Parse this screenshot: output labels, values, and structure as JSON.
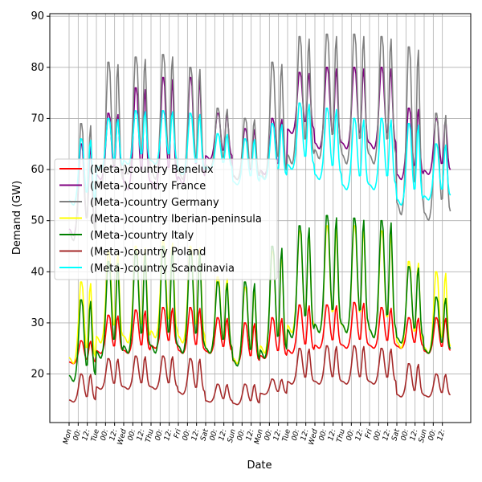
{
  "chart_data": {
    "type": "line",
    "title": "",
    "xlabel": "Date",
    "ylabel": "Demand (GW)",
    "ylim": [
      10.5,
      90.5
    ],
    "yticks": [
      20,
      30,
      40,
      50,
      60,
      70,
      80,
      90
    ],
    "grid": true,
    "legend_position": "center-left",
    "x_tick_labels": [
      "Mon",
      "00:",
      "12:",
      "Tue",
      "00:",
      "12:",
      "Wed",
      "00:",
      "12:",
      "Thu",
      "00:",
      "12:",
      "Fri",
      "00:",
      "12:",
      "Sat",
      "00:",
      "12:",
      "Sun",
      "00:",
      "12:",
      "Mon",
      "00:",
      "12:",
      "Tue",
      "00:",
      "12:",
      "Wed",
      "00:",
      "12:",
      "Thu",
      "00:",
      "12:",
      "Fri",
      "00:",
      "12:",
      "Sat",
      "00:",
      "12:",
      "Sun",
      "00:",
      "12:"
    ],
    "x_tick_groups_comment": "",
    "days": [
      "Mon",
      "Tue",
      "Wed",
      "Thu",
      "Fri",
      "Sat",
      "Sun",
      "Mon",
      "Tue",
      "Wed",
      "Thu",
      "Fri",
      "Sat",
      "Sun"
    ],
    "series": [
      {
        "name": "(Meta-)country Benelux",
        "color": "#ff0000",
        "daily_min": [
          22,
          24,
          24,
          25,
          24,
          24,
          22,
          23,
          24,
          25,
          25,
          25,
          25,
          24
        ],
        "daily_max": [
          26.5,
          31.5,
          32.5,
          33,
          33,
          31,
          30,
          31,
          33.5,
          33.5,
          34,
          33,
          31,
          31
        ]
      },
      {
        "name": "(Meta-)country France",
        "color": "#800080",
        "daily_min": [
          47,
          58,
          56,
          56,
          57,
          62,
          58,
          59,
          67,
          64,
          64,
          64,
          58,
          59
        ],
        "daily_max": [
          65,
          71,
          76,
          78,
          78,
          71,
          68,
          70,
          79,
          80,
          80,
          80,
          72,
          70
        ]
      },
      {
        "name": "(Meta-)country Germany",
        "color": "#808080",
        "daily_min": [
          46,
          56,
          59,
          58,
          58,
          60,
          58,
          58,
          61,
          62,
          61,
          61,
          51,
          50
        ],
        "daily_max": [
          69,
          81,
          82,
          82.5,
          80,
          72,
          70,
          81,
          86,
          86.5,
          86.5,
          86,
          84,
          71
        ]
      },
      {
        "name": "(Meta-)country Iberian-peninsula",
        "color": "#ffff00",
        "daily_min": [
          22,
          26,
          26,
          27,
          26,
          24,
          22,
          24,
          28,
          28,
          28,
          27,
          25,
          24
        ],
        "daily_max": [
          38,
          44,
          45,
          46,
          45,
          39,
          37,
          44,
          48,
          49,
          49,
          48,
          42,
          40
        ]
      },
      {
        "name": "(Meta-)country Italy",
        "color": "#008000",
        "daily_min": [
          18.5,
          23,
          24,
          24,
          24,
          24,
          21.5,
          23,
          27,
          28,
          28,
          27,
          26,
          24
        ],
        "daily_max": [
          34.5,
          42,
          44,
          45,
          44,
          38,
          38,
          45,
          49,
          51,
          50.5,
          50,
          41,
          35
        ]
      },
      {
        "name": "(Meta-)country Poland",
        "color": "#a52a2a",
        "daily_min": [
          14.5,
          17,
          17,
          17,
          16,
          14.5,
          14,
          16,
          18,
          18,
          18,
          18,
          15.5,
          15.5
        ],
        "daily_max": [
          20,
          23,
          23.5,
          23.5,
          23,
          18,
          18,
          19,
          25,
          25.5,
          25.5,
          25,
          22,
          20
        ]
      },
      {
        "name": "(Meta-)country Scandinavia",
        "color": "#00ffff",
        "daily_min": [
          53,
          60,
          61,
          61,
          59,
          60,
          57,
          58,
          60,
          58,
          56,
          56,
          53,
          54
        ],
        "daily_max": [
          66,
          70,
          71.5,
          71.5,
          71,
          67,
          66,
          69,
          73,
          72,
          70,
          70,
          69,
          65
        ]
      }
    ]
  }
}
